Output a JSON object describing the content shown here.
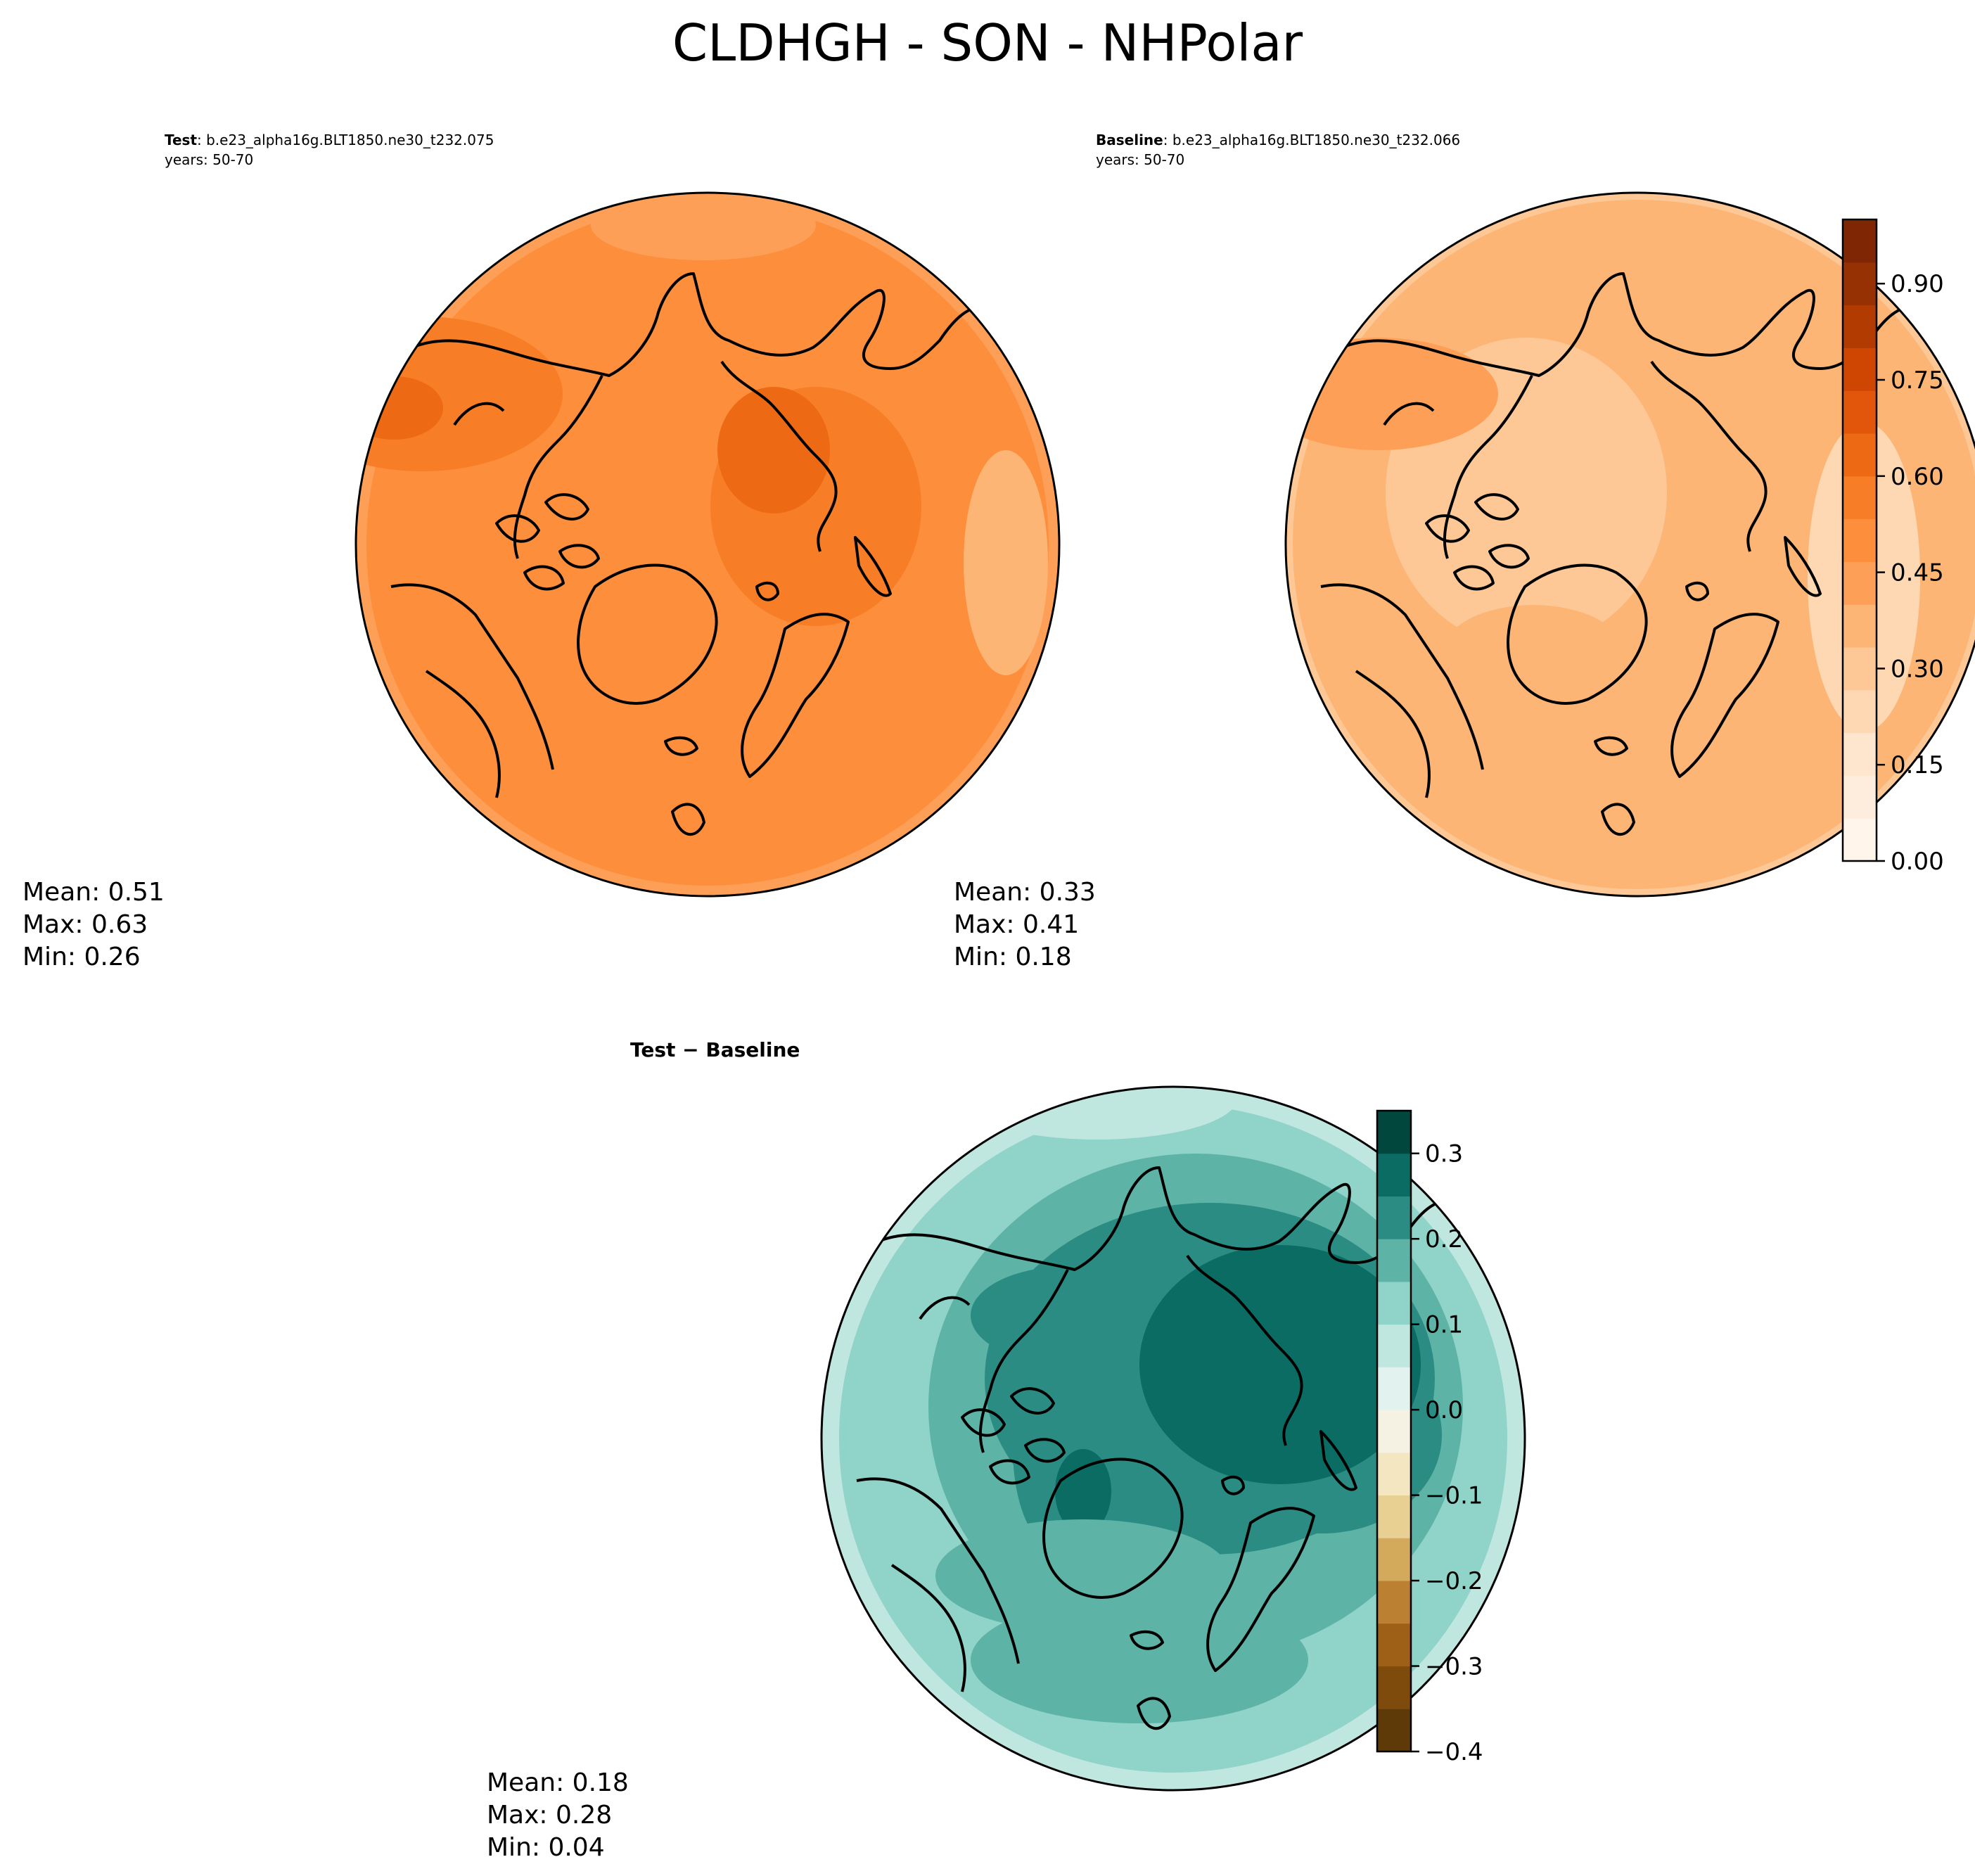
{
  "figure": {
    "title": "CLDHGH - SON - NHPolar"
  },
  "panels": [
    {
      "id": "test",
      "title_bold": "Test",
      "title_rest": ": b.e23_alpha16g.BLT1850.ne30_t232.075",
      "subtitle": "years: 50-70",
      "stats": {
        "mean": "Mean:  0.51",
        "max": "Max:  0.63",
        "min": "Min:  0.26"
      }
    },
    {
      "id": "baseline",
      "title_bold": "Baseline",
      "title_rest": ": b.e23_alpha16g.BLT1850.ne30_t232.066",
      "subtitle": "years: 50-70",
      "stats": {
        "mean": "Mean:  0.33",
        "max": "Max:  0.41",
        "min": "Min:  0.18"
      }
    },
    {
      "id": "diff",
      "title_bold": "Test − Baseline",
      "title_rest": "",
      "subtitle": "",
      "stats": {
        "mean": "Mean:  0.18",
        "max": "Max:  0.28",
        "min": "Min:  0.04"
      }
    }
  ],
  "chart_data": [
    {
      "type": "heatmap",
      "panel": "test",
      "projection": "north-polar-stereographic",
      "field_stats": {
        "mean": 0.51,
        "max": 0.63,
        "min": 0.26
      },
      "colormap": "Oranges",
      "levels": [
        0.0,
        1.0
      ]
    },
    {
      "type": "heatmap",
      "panel": "baseline",
      "projection": "north-polar-stereographic",
      "field_stats": {
        "mean": 0.33,
        "max": 0.41,
        "min": 0.18
      },
      "colormap": "Oranges",
      "levels": [
        0.0,
        1.0
      ]
    },
    {
      "type": "heatmap",
      "panel": "diff",
      "projection": "north-polar-stereographic",
      "field_stats": {
        "mean": 0.18,
        "max": 0.28,
        "min": 0.04
      },
      "colormap": "BrBG",
      "levels": [
        -0.4,
        0.35
      ]
    }
  ],
  "colorbars": [
    {
      "id": "abs",
      "range": [
        0.0,
        1.0
      ],
      "ticks": [
        0.0,
        0.15,
        0.3,
        0.45,
        0.6,
        0.75,
        0.9
      ],
      "tick_labels": [
        "0.00",
        "0.15",
        "0.30",
        "0.45",
        "0.60",
        "0.75",
        "0.90"
      ],
      "colors": [
        "#fff5eb",
        "#feeddc",
        "#fee6ce",
        "#fdd8b3",
        "#fdc895",
        "#fdb576",
        "#fd9f56",
        "#fd8e3c",
        "#f77d27",
        "#ed6914",
        "#e1560a",
        "#cf4502",
        "#b23b02",
        "#953103",
        "#7f2704"
      ]
    },
    {
      "id": "diff",
      "range": [
        -0.4,
        0.35
      ],
      "ticks": [
        -0.4,
        -0.3,
        -0.2,
        -0.1,
        0.0,
        0.1,
        0.2,
        0.3
      ],
      "tick_labels": [
        "−0.4",
        "−0.3",
        "−0.2",
        "−0.1",
        "0.0",
        "0.1",
        "0.2",
        "0.3"
      ],
      "colors": [
        "#5f3a09",
        "#7e4b0c",
        "#9e5f16",
        "#bc8033",
        "#d3aa5c",
        "#e8cf92",
        "#f3e6c1",
        "#f5f1e3",
        "#e2f2ef",
        "#c0e6e0",
        "#90d3c8",
        "#5cb3a6",
        "#2b8c83",
        "#0b6c63",
        "#01473d"
      ]
    }
  ],
  "colors": {
    "test_levels": [
      "#fd9f56",
      "#fd8e3c",
      "#f77d27",
      "#ed6914"
    ],
    "baseline_levels": [
      "#fee6ce",
      "#fdd8b3",
      "#fdc895",
      "#fdb576",
      "#fd9f56"
    ],
    "diff_levels": [
      "#e2f2ef",
      "#c0e6e0",
      "#90d3c8",
      "#5cb3a6",
      "#2b8c83",
      "#0b6c63",
      "#01473d"
    ]
  }
}
